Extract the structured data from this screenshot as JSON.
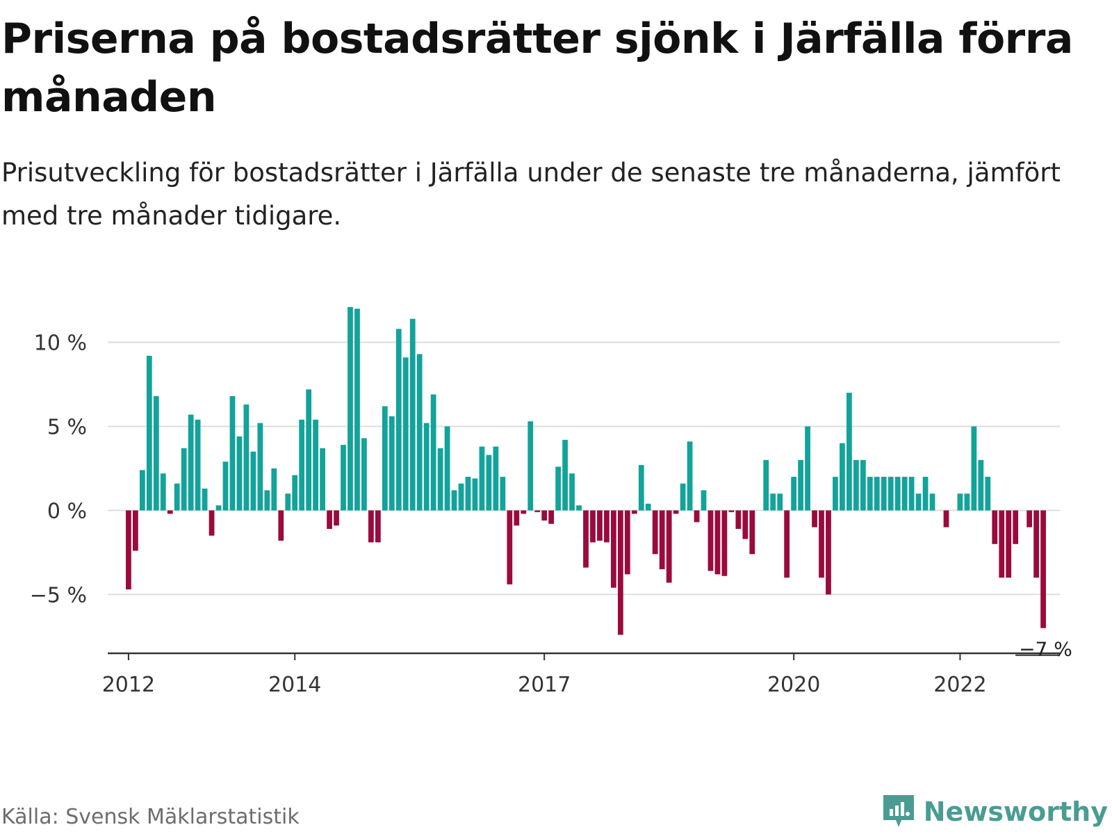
{
  "title": "Priserna på bostadsrätter sjönk i Järfälla förra månaden",
  "subtitle": "Prisutveckling för bostadsrätter i Järfälla under de senaste tre månaderna, jämfört med tre månader tidigare.",
  "source": "Källa: Svensk Mäklarstatistik",
  "brand": {
    "name": "Newsworthy",
    "icon": "newsworthy-logo-icon"
  },
  "colors": {
    "positive": "#12a39a",
    "negative": "#9b0a3d",
    "grid": "#dddddd",
    "axis": "#333333"
  },
  "chart_data": {
    "type": "bar",
    "unit": "%",
    "grid": true,
    "ylim": [
      -8.5,
      13
    ],
    "xlim": [
      2011.75,
      2023.2
    ],
    "y_ticks": [
      {
        "value": 10,
        "label": "10 %"
      },
      {
        "value": 5,
        "label": "5 %"
      },
      {
        "value": 0,
        "label": "0 %"
      },
      {
        "value": -5,
        "label": "−5 %"
      }
    ],
    "x_ticks": [
      {
        "value": 2012,
        "label": "2012"
      },
      {
        "value": 2014,
        "label": "2014"
      },
      {
        "value": 2017,
        "label": "2017"
      },
      {
        "value": 2020,
        "label": "2020"
      },
      {
        "value": 2022,
        "label": "2022"
      }
    ],
    "start_year": 2012,
    "end_label": "−7 %",
    "values": [
      -4.7,
      -2.4,
      2.4,
      9.2,
      6.8,
      2.2,
      -0.2,
      1.6,
      3.7,
      5.7,
      5.4,
      1.3,
      -1.5,
      0.3,
      2.9,
      6.8,
      4.4,
      6.3,
      3.5,
      5.2,
      1.2,
      2.5,
      -1.8,
      1.0,
      2.1,
      5.4,
      7.2,
      5.4,
      3.7,
      -1.1,
      -0.9,
      3.9,
      12.1,
      12.0,
      4.3,
      -1.9,
      -1.9,
      6.2,
      5.6,
      10.8,
      9.1,
      11.4,
      9.3,
      5.2,
      6.9,
      3.7,
      5.0,
      1.2,
      1.6,
      2.0,
      1.9,
      3.8,
      3.3,
      3.8,
      2.0,
      -4.4,
      -0.9,
      -0.2,
      5.3,
      -0.1,
      -0.6,
      -0.8,
      2.6,
      4.2,
      2.2,
      0.3,
      -3.4,
      -1.9,
      -1.8,
      -1.9,
      -4.6,
      -7.4,
      -3.8,
      -0.2,
      2.7,
      0.4,
      -2.6,
      -3.5,
      -4.3,
      -0.2,
      1.6,
      4.1,
      -0.7,
      1.2,
      -3.6,
      -3.8,
      -3.9,
      -0.1,
      -1.1,
      -1.7,
      -2.6,
      0.0,
      3.0,
      1.0,
      1.0,
      -4.0,
      2.0,
      3.0,
      5.0,
      -1.0,
      -4.0,
      -5.0,
      2.0,
      4.0,
      7.0,
      3.0,
      3.0,
      2.0,
      2.0,
      2.0,
      2.0,
      2.0,
      2.0,
      2.0,
      1.0,
      2.0,
      1.0,
      0.0,
      -1.0,
      0.0,
      1.0,
      1.0,
      5.0,
      3.0,
      2.0,
      -2.0,
      -4.0,
      -4.0,
      -2.0,
      0.0,
      -1.0,
      -4.0,
      -7.0
    ]
  }
}
